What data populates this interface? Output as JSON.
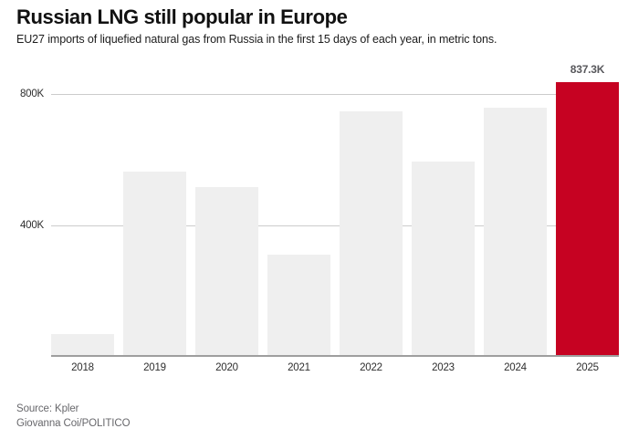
{
  "header": {
    "title": "Russian LNG still popular in Europe",
    "subtitle": "EU27 imports of liquefied natural gas from Russia in the first 15 days of each year, in metric tons."
  },
  "chart_data": {
    "type": "bar",
    "categories": [
      "2018",
      "2019",
      "2020",
      "2021",
      "2022",
      "2023",
      "2024",
      "2025"
    ],
    "values": [
      69000,
      564000,
      516000,
      310000,
      748000,
      595000,
      757000,
      837300
    ],
    "unit": "metric tons",
    "title": "Russian LNG still popular in Europe",
    "xlabel": "",
    "ylabel": "",
    "ylim": [
      0,
      850000
    ],
    "grid": "horizontal",
    "legend": "none",
    "yticks": [
      {
        "value": 400000,
        "label": "400K"
      },
      {
        "value": 800000,
        "label": "800K"
      }
    ],
    "highlight_index": 7,
    "highlight_label": "837.3K",
    "colors": {
      "bar": "#efefef",
      "highlight": "#c60222",
      "gridline": "#cccccc",
      "baseline": "#9e9e9e"
    }
  },
  "footer": {
    "source": "Source: Kpler",
    "credit": "Giovanna Coi/POLITICO"
  }
}
